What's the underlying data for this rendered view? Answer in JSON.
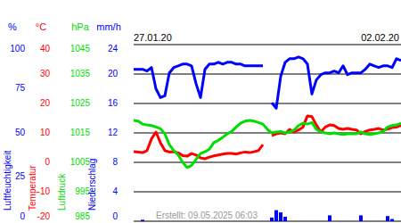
{
  "chart_data": {
    "type": "line",
    "footer": "Erstellt: 09.05.2025 06:03",
    "grid": true,
    "categories": [
      "27.01.20",
      null,
      null,
      null,
      null,
      null,
      null,
      null,
      null,
      null,
      null,
      null,
      null,
      null,
      null,
      null,
      null,
      null,
      null,
      null,
      null,
      null,
      null,
      null,
      null,
      null,
      null,
      null,
      null,
      null,
      null,
      null,
      null,
      null,
      null,
      null,
      null,
      null,
      null,
      null,
      null,
      null,
      null,
      null,
      null,
      null,
      null,
      null,
      null,
      null,
      null,
      null,
      null,
      null,
      null,
      null,
      null,
      null,
      null,
      null,
      "02.02.20"
    ],
    "series": [
      {
        "name": "Luftfeuchtigkeit",
        "unit": "%",
        "type": "line",
        "color": "#0000ff",
        "ylim": [
          0,
          100
        ],
        "yticks": [
          0,
          25,
          50,
          75,
          100
        ],
        "values": [
          86,
          86,
          86,
          85,
          87,
          75,
          70,
          71,
          84,
          87,
          88,
          89,
          89,
          88,
          78,
          70,
          86,
          89,
          89,
          90,
          89,
          90,
          90,
          89,
          89,
          88,
          88,
          88,
          88,
          88,
          null,
          67,
          64,
          82,
          90,
          92,
          92,
          93,
          92,
          89,
          72,
          80,
          83,
          84,
          84,
          85,
          84,
          88,
          83,
          84,
          84,
          84,
          86,
          89,
          88,
          87,
          88,
          88,
          87,
          92,
          91
        ]
      },
      {
        "name": "Temperatur",
        "unit": "°C",
        "type": "line",
        "color": "#ff0000",
        "ylim": [
          -20,
          40
        ],
        "yticks": [
          -20,
          -10,
          0,
          10,
          20,
          30,
          40
        ],
        "values": [
          3.6,
          3.5,
          3.3,
          4,
          8,
          10.3,
          6.7,
          4,
          3.5,
          3.6,
          3.2,
          2.3,
          2.1,
          3,
          2.5,
          1.5,
          1.2,
          1.8,
          2.2,
          2.5,
          2.8,
          3,
          3,
          2.8,
          3.2,
          3.5,
          3.3,
          3.6,
          4,
          6,
          null,
          9.1,
          9.7,
          10,
          9.7,
          11.2,
          10.3,
          11,
          12,
          15.8,
          15.5,
          12.7,
          10.3,
          12,
          12.7,
          12.5,
          11.5,
          11.2,
          11.5,
          11.2,
          11,
          9.7,
          10.5,
          11,
          11.2,
          11.5,
          11,
          11.3,
          11.8,
          12,
          12.5
        ]
      },
      {
        "name": "Luftdruck",
        "unit": "hPa",
        "type": "line",
        "color": "#00dd00",
        "ylim": [
          985,
          1045
        ],
        "yticks": [
          985,
          995,
          1005,
          1015,
          1025,
          1035,
          1045
        ],
        "values": [
          1019.2,
          1019,
          1018,
          1017.7,
          1017.5,
          1017,
          1016.5,
          1014.7,
          1011,
          1009,
          1007.5,
          1005,
          1003.2,
          1004,
          1006,
          1008,
          1008.6,
          1009.5,
          1011.7,
          1012.5,
          1013.5,
          1014.7,
          1015.5,
          1017,
          1018.3,
          1019,
          1019.2,
          1019,
          1018.5,
          1018,
          1016.2,
          1015,
          1015.3,
          1015.5,
          1015,
          1015.3,
          1016,
          1017.5,
          1018.3,
          1018,
          1018.5,
          1016.2,
          1015.3,
          1015,
          1014.7,
          1015,
          1014.7,
          1014.5,
          1014.7,
          1014.7,
          1014.7,
          1015.3,
          1014.7,
          1014.5,
          1014.7,
          1015,
          1015.5,
          1017,
          1017.5,
          1017.7,
          1018.3
        ]
      },
      {
        "name": "Niederschlag",
        "unit": "mm/h",
        "type": "bar",
        "color": "#0000ff",
        "ylim": [
          0,
          24
        ],
        "yticks": [
          0,
          4,
          8,
          12,
          16,
          20,
          24
        ],
        "values": [
          0,
          0,
          0.2,
          0,
          0,
          0,
          0,
          0,
          0,
          0,
          0,
          0,
          0,
          0,
          0,
          0,
          0,
          0,
          0,
          0,
          0,
          0,
          0,
          0,
          0,
          0,
          0,
          0,
          0,
          0,
          0,
          0.5,
          1.5,
          1.2,
          0.6,
          0,
          0,
          0,
          0,
          0,
          0,
          0,
          0,
          0,
          0.8,
          0,
          0,
          0,
          0,
          0,
          0,
          0.8,
          0,
          0,
          0,
          0,
          0,
          0.7,
          0.3,
          0,
          0
        ]
      }
    ]
  }
}
